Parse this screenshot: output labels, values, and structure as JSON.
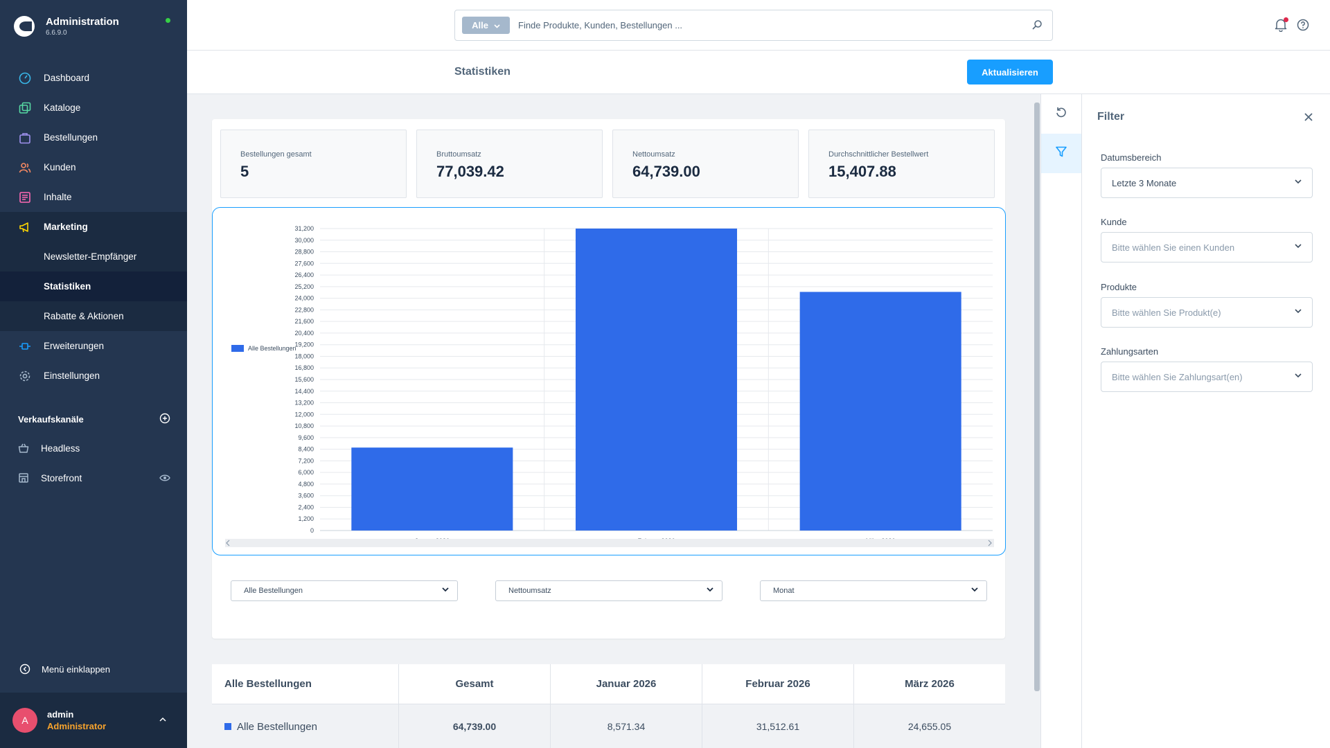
{
  "app": {
    "title": "Administration",
    "version": "6.6.9.0"
  },
  "sidebar": {
    "items": [
      {
        "label": "Dashboard",
        "icon": "gauge-icon"
      },
      {
        "label": "Kataloge",
        "icon": "catalog-icon"
      },
      {
        "label": "Bestellungen",
        "icon": "bag-icon"
      },
      {
        "label": "Kunden",
        "icon": "users-icon"
      },
      {
        "label": "Inhalte",
        "icon": "content-icon"
      },
      {
        "label": "Marketing",
        "icon": "megaphone-icon"
      }
    ],
    "marketing_sub": [
      "Newsletter-Empfänger",
      "Statistiken",
      "Rabatte & Aktionen"
    ],
    "items_after": [
      {
        "label": "Erweiterungen",
        "icon": "plug-icon"
      },
      {
        "label": "Einstellungen",
        "icon": "gear-icon"
      }
    ],
    "channels_title": "Verkaufskanäle",
    "channels": [
      {
        "label": "Headless",
        "icon": "basket-icon"
      },
      {
        "label": "Storefront",
        "icon": "storefront-icon"
      }
    ],
    "collapse_label": "Menü einklappen",
    "user": {
      "initial": "A",
      "name": "admin",
      "role": "Administrator"
    }
  },
  "header": {
    "search_type": "Alle",
    "search_placeholder": "Finde Produkte, Kunden, Bestellungen ..."
  },
  "page": {
    "title": "Statistiken",
    "refresh_label": "Aktualisieren"
  },
  "kpis": [
    {
      "label": "Bestellungen gesamt",
      "value": "5"
    },
    {
      "label": "Bruttoumsatz",
      "value": "77,039.42"
    },
    {
      "label": "Nettoumsatz",
      "value": "64,739.00"
    },
    {
      "label": "Durchschnittlicher Bestellwert",
      "value": "15,407.88"
    }
  ],
  "chart_data": {
    "type": "bar",
    "categories": [
      "Januar 2026",
      "Februar 2026",
      "März 2026"
    ],
    "series": [
      {
        "name": "Alle Bestellungen",
        "values": [
          8571.34,
          31512.61,
          24655.05
        ]
      }
    ],
    "ylim": [
      0,
      31200
    ],
    "yticks": [
      0,
      1200,
      2400,
      3600,
      4800,
      6000,
      7200,
      8400,
      9600,
      10800,
      12000,
      13200,
      14400,
      15600,
      16800,
      18000,
      19200,
      20400,
      21600,
      22800,
      24000,
      25200,
      26400,
      27600,
      28800,
      30000,
      31200
    ],
    "legend_position": "left",
    "grid": true,
    "color": "#2f6be9"
  },
  "controls": {
    "series_select": "Alle Bestellungen",
    "metric_select": "Nettoumsatz",
    "period_select": "Monat"
  },
  "table": {
    "headers": [
      "Alle Bestellungen",
      "Gesamt",
      "Januar 2026",
      "Februar 2026",
      "März 2026"
    ],
    "rows": [
      {
        "label": "Alle Bestellungen",
        "cells": [
          "64,739.00",
          "8,571.34",
          "31,512.61",
          "24,655.05"
        ]
      }
    ]
  },
  "filter": {
    "title": "Filter",
    "fields": [
      {
        "label": "Datumsbereich",
        "value": "Letzte 3 Monate",
        "placeholder": false
      },
      {
        "label": "Kunde",
        "value": "Bitte wählen Sie einen Kunden",
        "placeholder": true
      },
      {
        "label": "Produkte",
        "value": "Bitte wählen Sie Produkt(e)",
        "placeholder": true
      },
      {
        "label": "Zahlungsarten",
        "value": "Bitte wählen Sie Zahlungsart(en)",
        "placeholder": true
      }
    ]
  }
}
